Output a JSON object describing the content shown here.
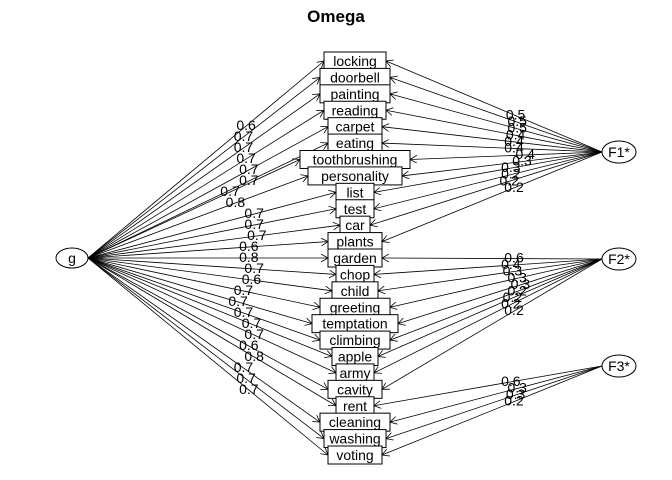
{
  "title": "Omega",
  "general_factor": "g",
  "group_factors": [
    "F1*",
    "F2*",
    "F3*"
  ],
  "variables": [
    {
      "name": "locking",
      "g": "0.6",
      "group": 0,
      "gl": "0.5"
    },
    {
      "name": "doorbell",
      "g": "0.7",
      "group": 0,
      "gl": "0.5"
    },
    {
      "name": "painting",
      "g": "0.7",
      "group": 0,
      "gl": "0.5"
    },
    {
      "name": "reading",
      "g": "0.7",
      "group": 0,
      "gl": "0.4"
    },
    {
      "name": "carpet",
      "g": "0.7",
      "group": 0,
      "gl": "0.4"
    },
    {
      "name": "eating",
      "g": "0.7",
      "group": 0,
      "gl": "0.4"
    },
    {
      "name": "toothbrushing",
      "g": "0.7",
      "group": 0,
      "gl": "0.4"
    },
    {
      "name": "personality",
      "g": "0.8",
      "group": 0,
      "gl": "0.3"
    },
    {
      "name": "list",
      "g": "0.7",
      "group": 0,
      "gl": "0.3"
    },
    {
      "name": "test",
      "g": "0.7",
      "group": 0,
      "gl": "0.2"
    },
    {
      "name": "car",
      "g": "0.7",
      "group": 0,
      "gl": "0.2"
    },
    {
      "name": "plants",
      "g": "0.6",
      "group": 0,
      "gl": "0.2"
    },
    {
      "name": "garden",
      "g": "0.8",
      "group": 1,
      "gl": "0.6"
    },
    {
      "name": "chop",
      "g": "0.7",
      "group": 1,
      "gl": "0.4"
    },
    {
      "name": "child",
      "g": "0.6",
      "group": 1,
      "gl": "0.3"
    },
    {
      "name": "greeting",
      "g": "0.7",
      "group": 1,
      "gl": "0.3"
    },
    {
      "name": "temptation",
      "g": "0.7",
      "group": 1,
      "gl": "0.3"
    },
    {
      "name": "climbing",
      "g": "0.7",
      "group": 1,
      "gl": "0.2"
    },
    {
      "name": "apple",
      "g": "0.7",
      "group": 1,
      "gl": "0.2"
    },
    {
      "name": "army",
      "g": "0.7",
      "group": 1,
      "gl": "0.2"
    },
    {
      "name": "cavity",
      "g": "0.6",
      "group": 1,
      "gl": "0.2"
    },
    {
      "name": "rent",
      "g": "0.8",
      "group": 2,
      "gl": "0.6"
    },
    {
      "name": "cleaning",
      "g": "0.7",
      "group": 2,
      "gl": "0.3"
    },
    {
      "name": "washing",
      "g": "0.7",
      "group": 2,
      "gl": "0.3"
    },
    {
      "name": "voting",
      "g": "0.7",
      "group": 2,
      "gl": "0.2"
    }
  ]
}
